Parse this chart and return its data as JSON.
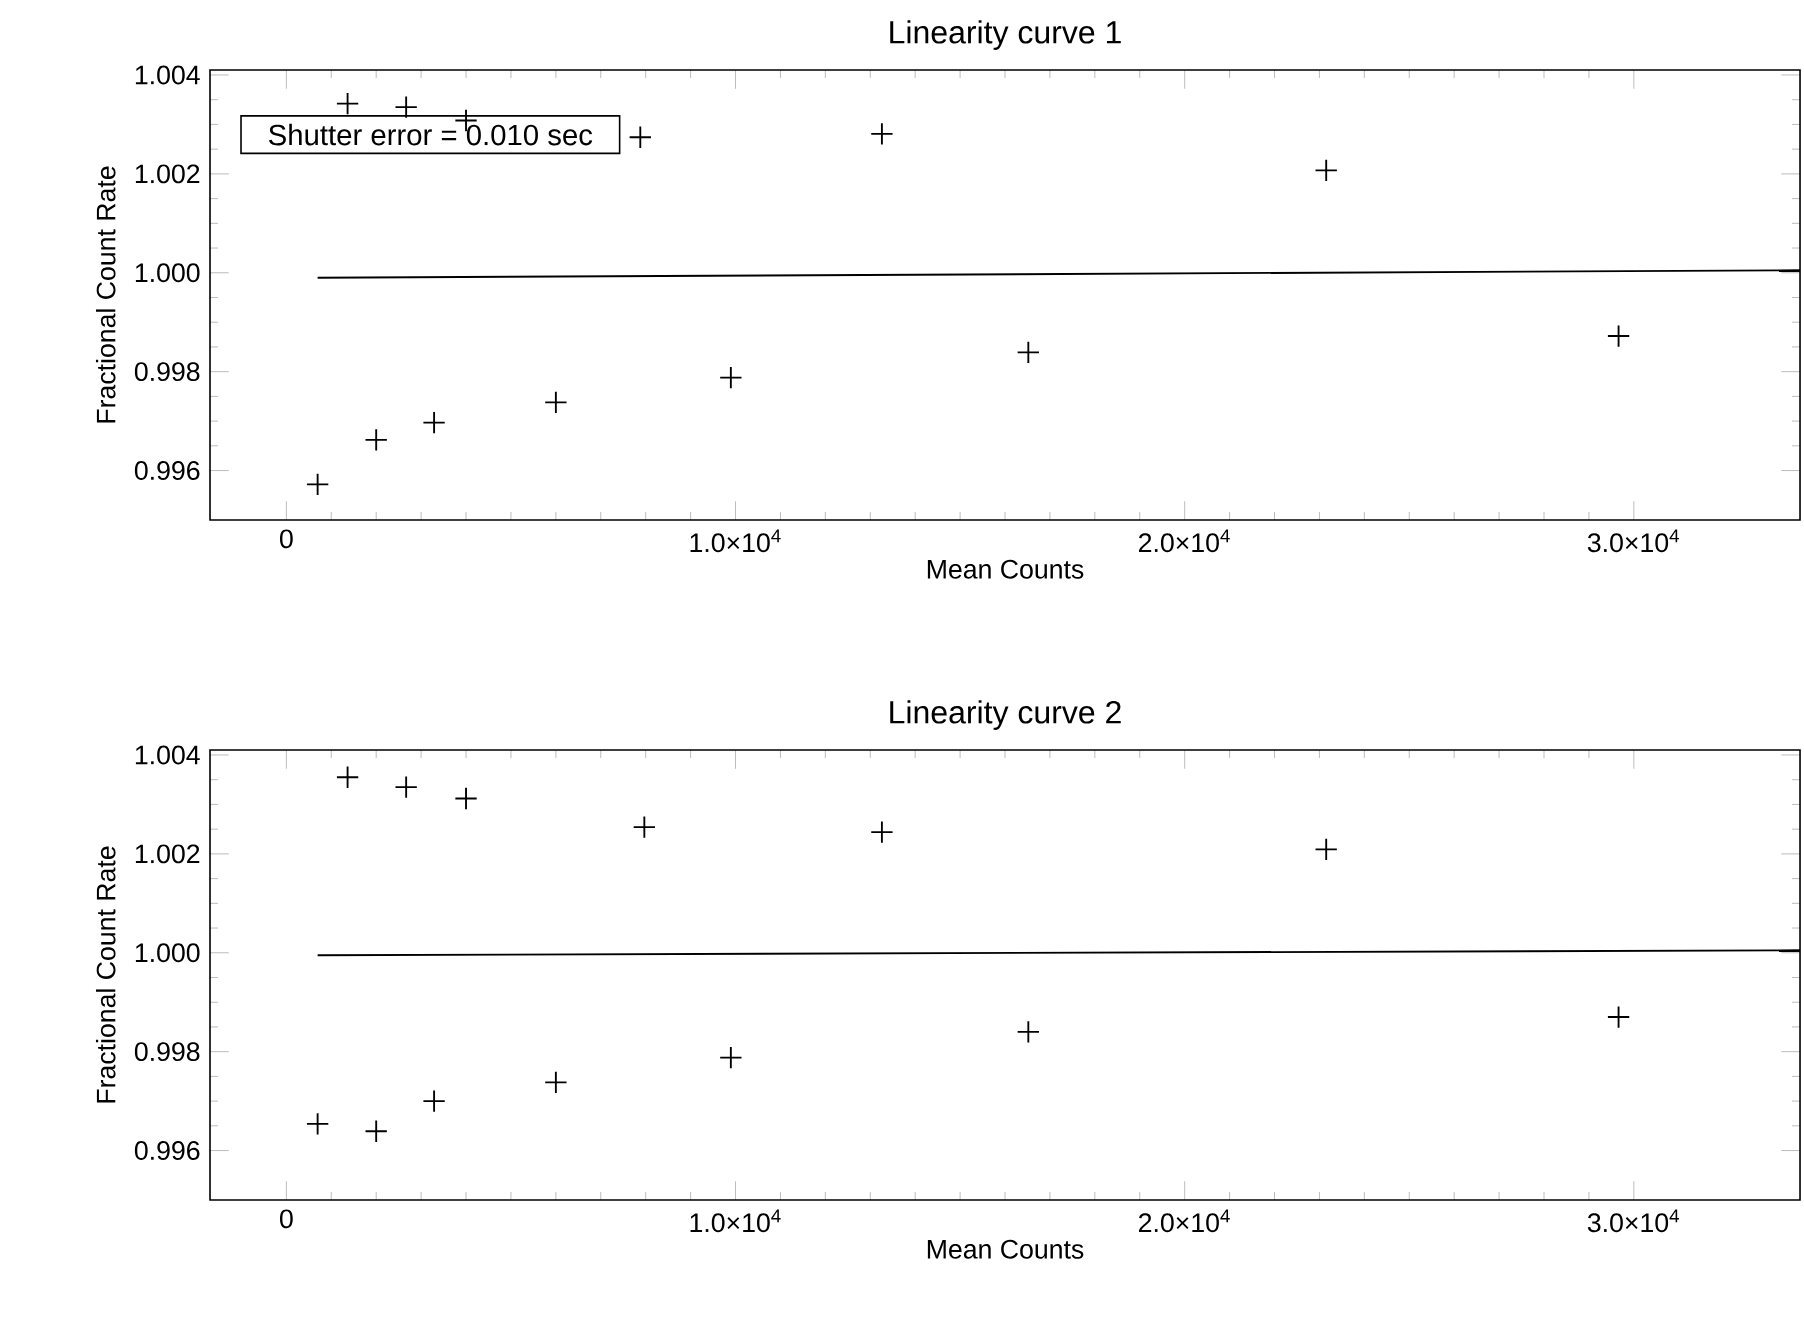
{
  "chart_data": [
    {
      "type": "scatter",
      "title": "Linearity curve 1",
      "xlabel": "Mean Counts",
      "ylabel": "Fractional Count Rate",
      "marker": "cross",
      "xlim": [
        -1700,
        33700
      ],
      "ylim": [
        0.995,
        1.0041
      ],
      "xticks": [
        0,
        {
          "value": 10000,
          "label": "1.0×10$^{4}$"
        },
        {
          "value": 20000,
          "label": "2.0×10$^{4}$"
        },
        {
          "value": 30000,
          "label": "3.0×10$^{4}$"
        }
      ],
      "yticks": [
        {
          "value": 0.996,
          "label": "0.996"
        },
        {
          "value": 0.998,
          "label": "0.998"
        },
        {
          "value": 1.0,
          "label": "1.000"
        },
        {
          "value": 1.002,
          "label": "1.002"
        },
        {
          "value": 1.004,
          "label": "1.004"
        }
      ],
      "annotations": [
        "Shutter error = 0.010 sec"
      ],
      "series": [
        {
          "color": "#000000",
          "x": [
            696,
            1363,
            2000,
            2667,
            3289,
            4000,
            6000,
            7880,
            9896,
            13259,
            16519,
            23151,
            29660
          ],
          "values": [
            0.99572,
            1.00342,
            0.99662,
            1.00335,
            0.99697,
            1.00308,
            0.99738,
            1.00274,
            0.99788,
            1.00281,
            0.99839,
            1.00207,
            0.99872
          ]
        },
        {
          "type": "line",
          "marker": "none",
          "color": "#000000",
          "x": [
            696,
            33700
          ],
          "values": [
            0.9999,
            1.00005
          ]
        }
      ]
    },
    {
      "type": "scatter",
      "title": "Linearity curve 2",
      "xlabel": "Mean Counts",
      "ylabel": "Fractional Count Rate",
      "marker": "cross",
      "xlim": [
        -1700,
        33700
      ],
      "ylim": [
        0.995,
        1.0041
      ],
      "xticks": [
        0,
        {
          "value": 10000,
          "label": "1.0×10$^{4}$"
        },
        {
          "value": 20000,
          "label": "2.0×10$^{4}$"
        },
        {
          "value": 30000,
          "label": "3.0×10$^{4}$"
        }
      ],
      "yticks": [
        {
          "value": 0.996,
          "label": "0.996"
        },
        {
          "value": 0.998,
          "label": "0.998"
        },
        {
          "value": 1.0,
          "label": "1.000"
        },
        {
          "value": 1.002,
          "label": "1.002"
        },
        {
          "value": 1.004,
          "label": "1.004"
        }
      ],
      "series": [
        {
          "color": "#000000",
          "x": [
            696,
            1363,
            2000,
            2667,
            3289,
            4000,
            6000,
            7970,
            9896,
            13259,
            16519,
            23151,
            29660
          ],
          "values": [
            0.99654,
            1.00355,
            0.99639,
            1.00335,
            0.997,
            1.00312,
            0.99738,
            1.00254,
            0.99788,
            1.00244,
            0.9984,
            1.00209,
            0.9987
          ]
        },
        {
          "type": "line",
          "marker": "none",
          "color": "#000000",
          "x": [
            696,
            33700
          ],
          "values": [
            0.99995,
            1.00005
          ]
        }
      ]
    }
  ]
}
